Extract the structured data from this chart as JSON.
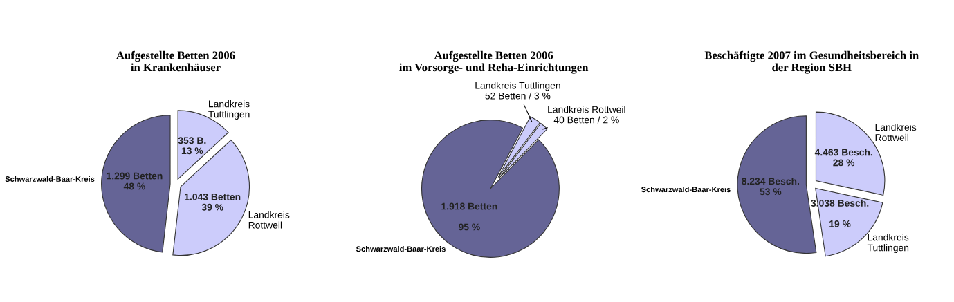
{
  "chart_data": [
    {
      "type": "pie",
      "title": "Aufgestellte Betten 2006\nin Krankenhäuser",
      "categories": [
        "Schwarzwald-Baar-Kreis",
        "Landkreis\nRottweil",
        "Landkreis\nTuttlingen"
      ],
      "values": [
        1299,
        1043,
        353
      ],
      "colors": [
        "#656496",
        "#ccccfb",
        "#ccccfb"
      ],
      "value_labels": [
        "1.299 Betten\n48 %",
        "1.043 Betten\n39 %",
        "353 B.\n13 %"
      ]
    },
    {
      "type": "pie",
      "title": "Aufgestellte Betten 2006\nim Vorsorge- und Reha-Einrichtungen",
      "categories": [
        "Schwarzwald-Baar-Kreis",
        "Landkreis Rottweil",
        "Landkreis Tuttlingen"
      ],
      "values": [
        1918,
        40,
        52
      ],
      "colors": [
        "#656496",
        "#ccccfb",
        "#ccccfb"
      ],
      "value_labels": [
        "1.918 Betten\n\n95 %",
        "40 Betten / 2 %",
        "52 Betten / 3 %"
      ]
    },
    {
      "type": "pie",
      "title": "Beschäftigte 2007 im Gesundheitsbereich in\nder Region SBH",
      "categories": [
        "Schwarzwald-Baar-Kreis",
        "Landkreis\nTuttlingen",
        "Landkreis\nRottweil"
      ],
      "values": [
        8234,
        3038,
        4463
      ],
      "colors": [
        "#656496",
        "#ccccfb",
        "#ccccfb"
      ],
      "value_labels": [
        "8.234 Besch.\n53 %",
        "3.038 Besch.\n\n19 %",
        "4.463 Besch.\n28 %"
      ]
    }
  ]
}
